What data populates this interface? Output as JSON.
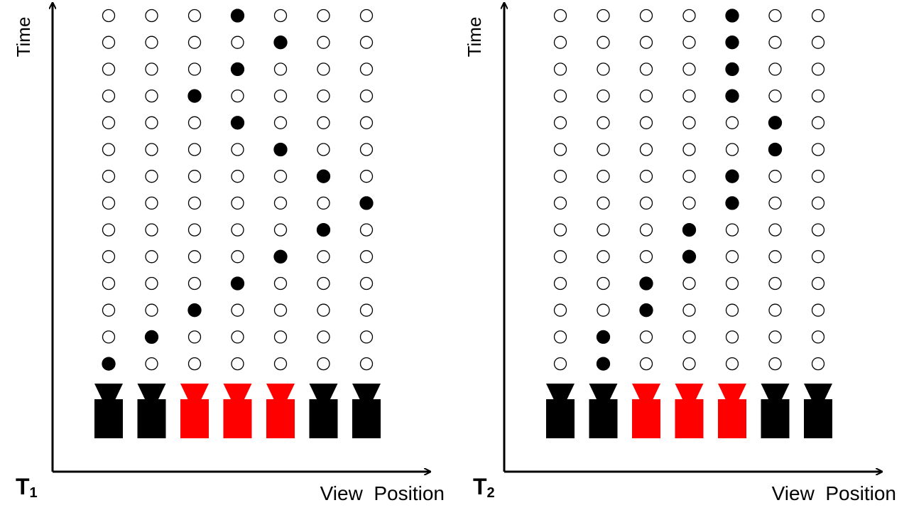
{
  "colors": {
    "background": "#ffffff",
    "axis": "#000000",
    "dot_filled": "#000000",
    "dot_empty": "#ffffff",
    "camera_default": "#000000",
    "camera_highlight": "#ff0000"
  },
  "diagrams": [
    {
      "id": "t1",
      "label_main": "T",
      "label_sub": "1",
      "y_axis_label": "Time",
      "x_axis_label": "View  Position",
      "view_count": 7,
      "time_steps": 14,
      "filled_view_by_row_from_top": [
        4,
        5,
        4,
        3,
        4,
        5,
        6,
        7,
        6,
        5,
        4,
        3,
        2,
        1
      ],
      "cameras": [
        "black",
        "black",
        "red",
        "red",
        "red",
        "black",
        "black"
      ]
    },
    {
      "id": "t2",
      "label_main": "T",
      "label_sub": "2",
      "y_axis_label": "Time",
      "x_axis_label": "View  Position",
      "view_count": 7,
      "time_steps": 14,
      "filled_view_by_row_from_top": [
        5,
        5,
        5,
        5,
        6,
        6,
        5,
        5,
        4,
        4,
        3,
        3,
        2,
        2
      ],
      "cameras": [
        "black",
        "black",
        "red",
        "red",
        "red",
        "black",
        "black"
      ]
    }
  ]
}
